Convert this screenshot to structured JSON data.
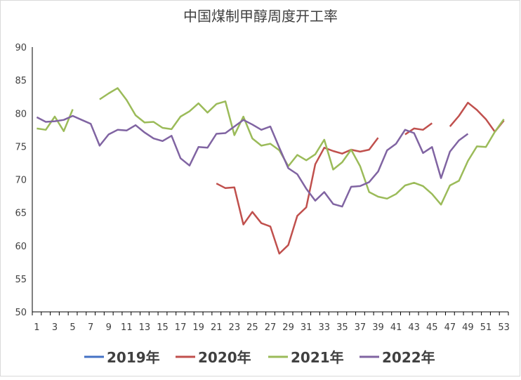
{
  "chart_data": {
    "type": "line",
    "title": "中国煤制甲醇周度开工率",
    "categories": [
      "1",
      null,
      "3",
      null,
      "5",
      null,
      "7",
      null,
      "9",
      null,
      "11",
      null,
      "13",
      null,
      "15",
      null,
      "17",
      null,
      "19",
      null,
      "21",
      null,
      "23",
      null,
      "25",
      null,
      "27",
      null,
      "29",
      null,
      "31",
      null,
      "33",
      null,
      "35",
      null,
      "37",
      null,
      "39",
      null,
      "41",
      null,
      "43",
      null,
      "45",
      null,
      "47",
      null,
      "49",
      null,
      "51",
      null,
      "53"
    ],
    "ylim": [
      50,
      90
    ],
    "yticks": [
      50,
      55,
      60,
      65,
      70,
      75,
      80,
      85,
      90
    ],
    "series": [
      {
        "name": "2019年",
        "color": "#4472c4",
        "values": [
          null,
          null,
          null,
          null,
          null,
          null,
          null,
          null,
          null,
          null,
          null,
          null,
          null,
          null,
          null,
          null,
          null,
          null,
          null,
          null,
          null,
          null,
          null,
          null,
          null,
          null,
          null,
          null,
          null,
          null,
          null,
          null,
          null,
          null,
          null,
          null,
          null,
          null,
          null,
          null,
          null,
          null,
          null,
          null,
          null,
          null,
          null,
          null,
          null,
          null,
          null,
          null,
          null
        ]
      },
      {
        "name": "2020年",
        "color": "#c0504d",
        "values": [
          null,
          null,
          null,
          null,
          null,
          null,
          null,
          null,
          null,
          null,
          null,
          null,
          null,
          null,
          null,
          null,
          null,
          null,
          null,
          null,
          69.4,
          68.7,
          68.8,
          63.2,
          65.1,
          63.4,
          62.9,
          58.8,
          60.1,
          64.5,
          65.8,
          72.3,
          74.8,
          74.3,
          73.9,
          74.5,
          74.2,
          74.5,
          76.3,
          null,
          null,
          76.8,
          77.7,
          77.5,
          78.5,
          null,
          78.0,
          79.6,
          81.6,
          80.5,
          79.1,
          77.2,
          78.9
        ]
      },
      {
        "name": "2021年",
        "color": "#9bbb59",
        "values": [
          77.7,
          77.5,
          79.5,
          77.3,
          80.6,
          null,
          null,
          82.1,
          83.0,
          83.8,
          82.0,
          79.7,
          78.6,
          78.7,
          77.8,
          77.6,
          79.5,
          80.3,
          81.5,
          80.1,
          81.4,
          81.8,
          76.7,
          79.5,
          76.2,
          75.1,
          75.4,
          74.4,
          72.0,
          73.7,
          72.9,
          73.8,
          76.0,
          71.5,
          72.6,
          74.5,
          72.0,
          68.1,
          67.4,
          67.1,
          67.8,
          69.1,
          69.5,
          69.0,
          67.8,
          66.2,
          69.1,
          69.8,
          72.8,
          75.0,
          74.9,
          77.2,
          79.1
        ]
      },
      {
        "name": "2022年",
        "color": "#8064a2",
        "values": [
          79.4,
          78.7,
          78.8,
          79.0,
          79.6,
          79.0,
          78.4,
          75.1,
          76.8,
          77.5,
          77.4,
          78.2,
          77.1,
          76.2,
          75.8,
          76.6,
          73.2,
          72.1,
          74.9,
          74.8,
          76.9,
          77.0,
          78.0,
          79.0,
          78.3,
          77.5,
          78.0,
          74.8,
          71.7,
          70.8,
          68.6,
          66.8,
          68.1,
          66.3,
          65.9,
          68.9,
          69.0,
          69.6,
          71.2,
          74.4,
          75.4,
          77.5,
          77.0,
          74.0,
          74.9,
          70.2,
          74.2,
          75.9,
          76.9,
          null,
          null,
          null,
          null
        ]
      }
    ]
  }
}
